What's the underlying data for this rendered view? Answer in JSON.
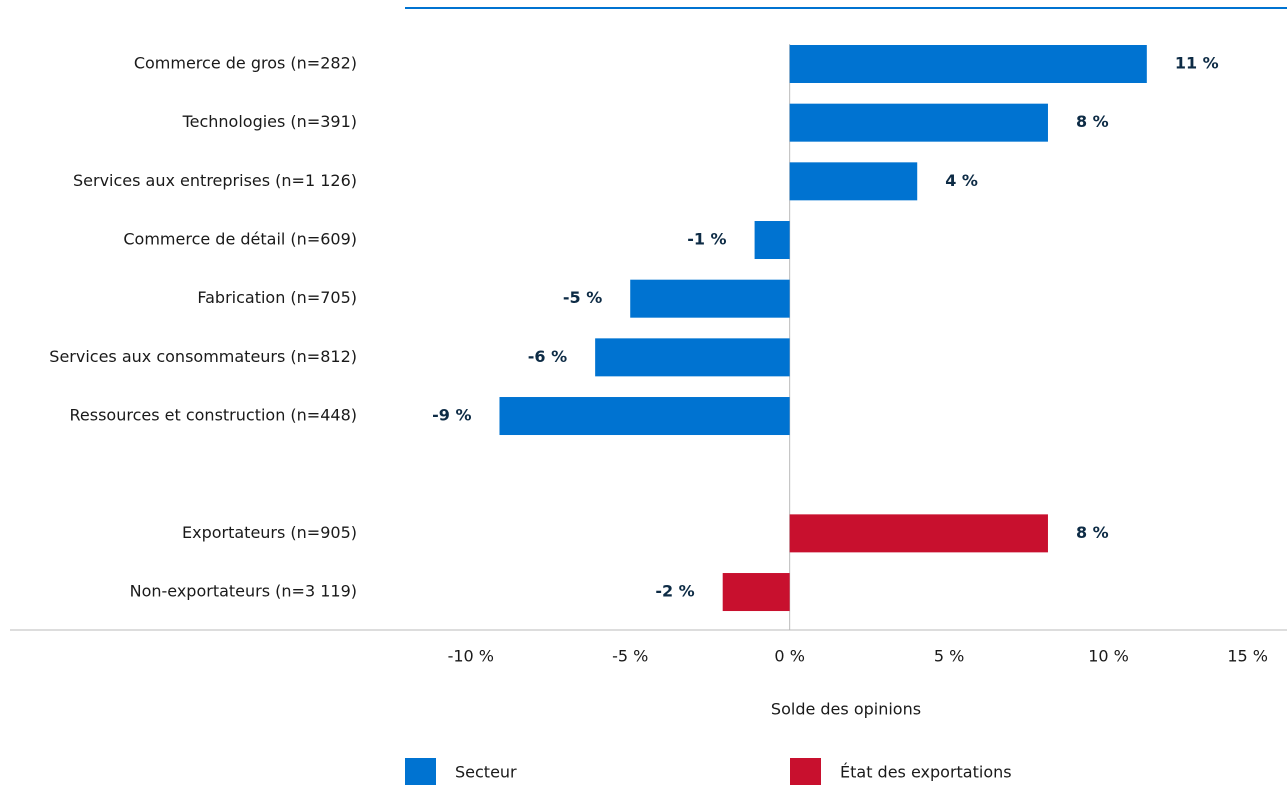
{
  "chart_data": {
    "type": "bar",
    "orientation": "horizontal",
    "x_label": "Solde des opinions",
    "categories": [
      "Commerce de gros (n=282)",
      "Technologies (n=391)",
      "Services aux entreprises (n=1 126)",
      "Commerce de détail (n=609)",
      "Fabrication (n=705)",
      "Services aux consommateurs (n=812)",
      "Ressources et construction (n=448)",
      null,
      "Exportateurs (n=905)",
      "Non-exportateurs (n=3 119)"
    ],
    "series": [
      {
        "name": "Secteur",
        "color": "#0073d1",
        "values": [
          11.2,
          8.1,
          4.0,
          -1.1,
          -5.0,
          -6.1,
          -9.1,
          null,
          null,
          null
        ],
        "value_labels": [
          "11 %",
          "8 %",
          "4 %",
          "-1 %",
          "-5 %",
          "-6 %",
          "-9 %",
          null,
          null,
          null
        ]
      },
      {
        "name": "État des exportations",
        "color": "#c8102e",
        "values": [
          null,
          null,
          null,
          null,
          null,
          null,
          null,
          null,
          8.1,
          -2.1
        ],
        "value_labels": [
          null,
          null,
          null,
          null,
          null,
          null,
          null,
          null,
          "8 %",
          "-2 %"
        ]
      }
    ],
    "xlim": [
      -12,
      15
    ],
    "xticks": [
      {
        "value": -10,
        "label": "-10 %"
      },
      {
        "value": -5,
        "label": "-5 %"
      },
      {
        "value": 0,
        "label": "0 %"
      },
      {
        "value": 5,
        "label": "5 %"
      },
      {
        "value": 10,
        "label": "10 %"
      },
      {
        "value": 15,
        "label": "15 %"
      }
    ],
    "legend": "bottom"
  }
}
